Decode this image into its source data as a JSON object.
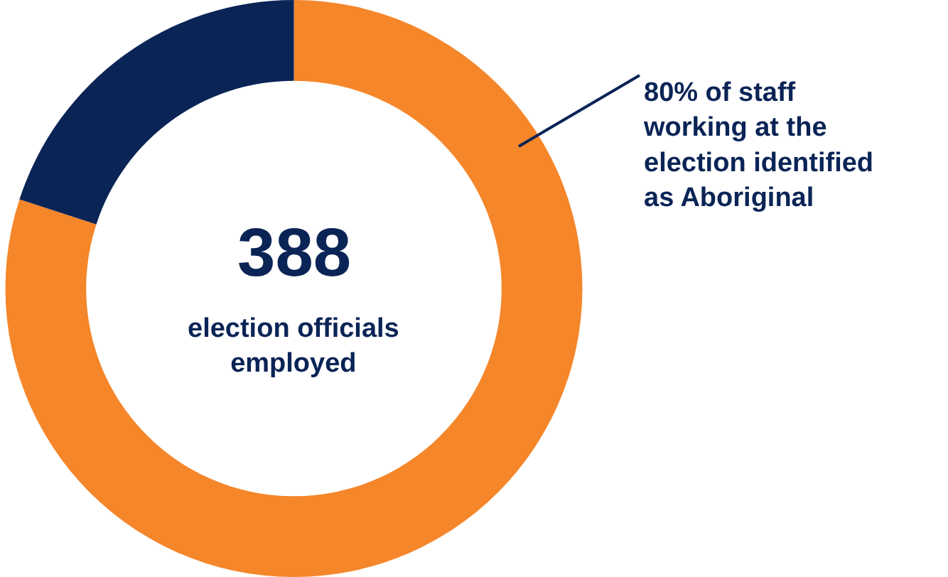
{
  "chart_data": {
    "type": "donut",
    "categories": [
      null,
      null
    ],
    "values": [
      80,
      20
    ],
    "colors": [
      "#f5862a",
      "#0a2456"
    ],
    "annotations": [
      "388",
      "election officials employed",
      "80% of staff working at the election identified as Aboriginal"
    ],
    "legend": false
  }
}
